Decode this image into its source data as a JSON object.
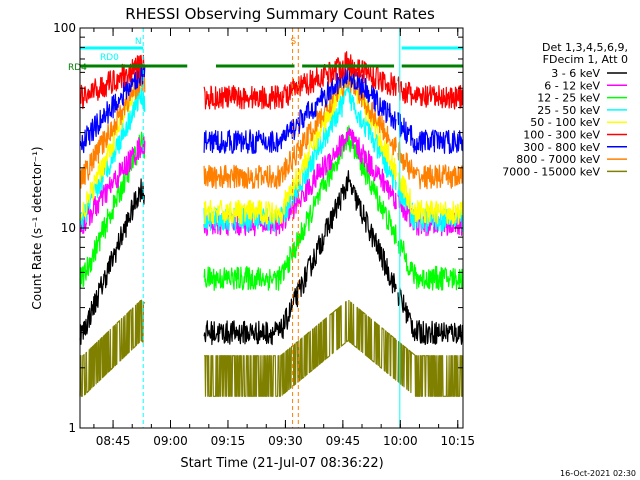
{
  "chart_data": {
    "type": "line",
    "title": "RHESSI Observing Summary Count Rates",
    "ylabel": "Count Rate (s⁻¹ detector⁻¹)",
    "xlabel": "Start Time (21-Jul-07 08:36:22)",
    "yscale": "log",
    "ylim": [
      1,
      100
    ],
    "xlim_minutes": [
      0,
      100
    ],
    "y_ticks": [
      {
        "label": "1",
        "value": 1
      },
      {
        "label": "10",
        "value": 10
      },
      {
        "label": "100",
        "value": 100
      }
    ],
    "x_ticks": [
      {
        "label": "08:45",
        "minute": 8.633
      },
      {
        "label": "09:00",
        "minute": 23.633
      },
      {
        "label": "09:15",
        "minute": 38.633
      },
      {
        "label": "09:30",
        "minute": 53.633
      },
      {
        "label": "09:45",
        "minute": 68.633
      },
      {
        "label": "10:00",
        "minute": 83.633
      },
      {
        "label": "10:15",
        "minute": 98.633
      }
    ],
    "legend_header": [
      "Det 1,3,4,5,6,9,",
      "FDecim 1, Att 0"
    ],
    "legend_position": "right",
    "series": [
      {
        "name": "3 - 6 keV",
        "color": "#000000",
        "night": 3.0,
        "peaks": [
          16,
          17
        ]
      },
      {
        "name": "6 - 12 keV",
        "color": "#ff00ff",
        "night": 10.5,
        "peaks": [
          26,
          29
        ]
      },
      {
        "name": "12 - 25 keV",
        "color": "#00ff00",
        "night": 5.6,
        "peaks": [
          27,
          29
        ]
      },
      {
        "name": "25 - 50 keV",
        "color": "#00ffff",
        "night": 11.0,
        "peaks": [
          47,
          47
        ]
      },
      {
        "name": "50 - 100 keV",
        "color": "#ffff00",
        "night": 12.0,
        "peaks": [
          58,
          60
        ]
      },
      {
        "name": "100 - 300 keV",
        "color": "#ff0000",
        "night": 45.0,
        "peaks": [
          65,
          67
        ]
      },
      {
        "name": "300 - 800 keV",
        "color": "#0000ff",
        "night": 27.0,
        "peaks": [
          60,
          60
        ]
      },
      {
        "name": "800 - 7000 keV",
        "color": "#ff8000",
        "night": 18.0,
        "peaks": [
          56,
          57
        ]
      },
      {
        "name": "7000 - 15000 keV",
        "color": "#808000",
        "night": 2.0,
        "peaks": [
          3.8,
          3.8
        ]
      }
    ],
    "saa_intervals_minutes": [
      [
        0,
        17.0
      ],
      [
        32.3,
        82.6
      ],
      [
        83.0,
        100
      ]
    ],
    "flags": [
      {
        "label": "RD0",
        "color": "#00ffff",
        "row": 0,
        "from": 0,
        "to": 16.5
      },
      {
        "label": "RD4",
        "color": "#008000",
        "row": 1,
        "from": 0,
        "to": 28.0
      },
      {
        "label": "",
        "color": "#00ffff",
        "row": 0,
        "from": 84.0,
        "to": 100
      },
      {
        "label": "",
        "color": "#008000",
        "row": 1,
        "from": 35.5,
        "to": 56.0
      },
      {
        "label": "",
        "color": "#008000",
        "row": 1,
        "from": 58.0,
        "to": 82.0
      },
      {
        "label": "",
        "color": "#008000",
        "row": 1,
        "from": 84.0,
        "to": 100
      }
    ],
    "markers": [
      {
        "label": "N",
        "color": "#00ffff",
        "minute": 16.5
      },
      {
        "label": "S",
        "color": "#ff8000",
        "minute": 57.0
      }
    ],
    "vertical_lines": [
      {
        "color": "#00ffff",
        "minute": 16.5,
        "dashed": true
      },
      {
        "color": "#00ffff",
        "minute": 83.5,
        "dashed": false
      },
      {
        "color": "#00ffff",
        "minute": 100,
        "dashed": true
      },
      {
        "color": "#ff8000",
        "minute": 55.5,
        "dashed": true
      },
      {
        "color": "#ff8000",
        "minute": 57.0,
        "dashed": true
      }
    ],
    "timestamp": "16-Oct-2021 02:30"
  }
}
